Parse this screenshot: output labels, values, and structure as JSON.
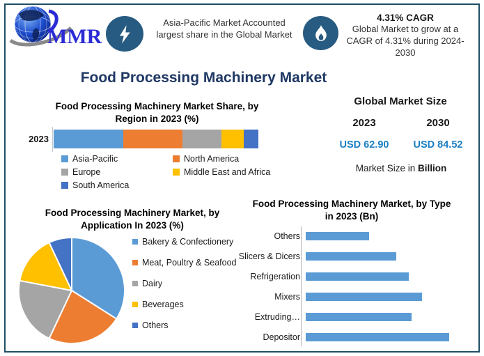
{
  "header": {
    "logo_text": "MMR",
    "logo_icon": "globe-logo-icon",
    "highlight1": {
      "icon": "lightning-icon",
      "text": "Asia-Pacific Market Accounted largest share in the Global Market"
    },
    "highlight2": {
      "icon": "flame-icon",
      "title": "4.31% CAGR",
      "text": "Global Market to grow at a CAGR of 4.31% during 2024-2030"
    }
  },
  "main_title": "Food Processing Machinery Market",
  "market_size": {
    "title": "Global Market Size",
    "years": [
      "2023",
      "2030"
    ],
    "values": [
      "USD 62.90",
      "USD 84.52"
    ],
    "note_prefix": "Market Size in ",
    "note_bold": "Billion"
  },
  "chart_data": [
    {
      "id": "region_share",
      "type": "bar",
      "subtype": "stacked-horizontal",
      "title": "Food Processing Machinery Market Share, by Region in 2023 (%)",
      "category": "2023",
      "series": [
        {
          "name": "Asia-Pacific",
          "value": 34,
          "color": "#5B9BD5"
        },
        {
          "name": "North America",
          "value": 29,
          "color": "#ED7D31"
        },
        {
          "name": "Europe",
          "value": 19,
          "color": "#A5A5A5"
        },
        {
          "name": "Middle East and Africa",
          "value": 11,
          "color": "#FFC000"
        },
        {
          "name": "South America",
          "value": 7,
          "color": "#4472C4"
        }
      ],
      "xlim": [
        0,
        100
      ],
      "grid": false,
      "legend_position": "bottom"
    },
    {
      "id": "application_share",
      "type": "pie",
      "title": "Food Processing Machinery Market, by Application In 2023 (%)",
      "slices": [
        {
          "name": "Bakery & Confectionery",
          "value": 34,
          "color": "#5B9BD5"
        },
        {
          "name": "Meat, Poultry & Seafood",
          "value": 23,
          "color": "#ED7D31"
        },
        {
          "name": "Dairy",
          "value": 21,
          "color": "#A5A5A5"
        },
        {
          "name": "Beverages",
          "value": 15,
          "color": "#FFC000"
        },
        {
          "name": "Others",
          "value": 7,
          "color": "#4472C4"
        }
      ],
      "start_angle_deg": 0,
      "direction": "clockwise",
      "legend_position": "right"
    },
    {
      "id": "type_market",
      "type": "bar",
      "subtype": "horizontal",
      "title": "Food Processing Machinery Market, by Type in 2023 (Bn)",
      "categories": [
        "Others",
        "Slicers & Dicers",
        "Refrigeration",
        "Mixers",
        "Extruding…",
        "Depositor"
      ],
      "values_relative_to_max": [
        0.44,
        0.63,
        0.72,
        0.81,
        0.74,
        1.0
      ],
      "bar_color": "#5B9BD5",
      "grid": false,
      "axis_tick_labels_visible": false
    }
  ],
  "colors": {
    "frame_border": "#1f4e63",
    "badge_circle": "#275b82",
    "main_title": "#1f3864",
    "usd_value_blue": "#1b7fc3"
  }
}
